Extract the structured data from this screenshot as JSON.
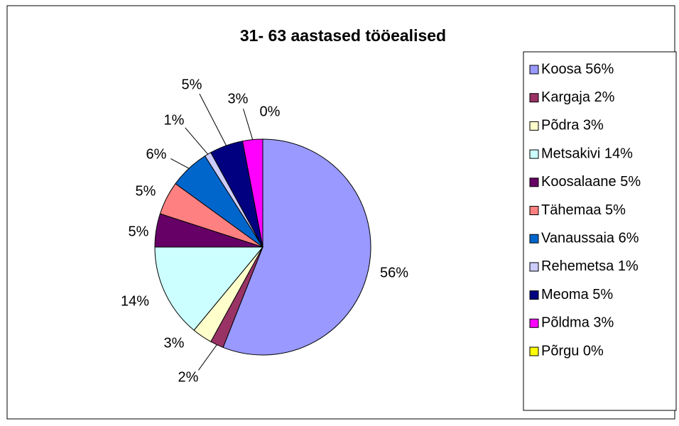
{
  "chart_data": {
    "type": "pie",
    "title": "31- 63 aastased tööealised",
    "categories": [
      "Koosa 56%",
      "Kargaja 2%",
      "Põdra 3%",
      "Metsakivi 14%",
      "Koosalaane 5%",
      "Tähemaa 5%",
      "Vanaussaia 6%",
      "Rehemetsa 1%",
      "Meoma 5%",
      "Põldma 3%",
      "Põrgu 0%"
    ],
    "values": [
      56,
      2,
      3,
      14,
      5,
      5,
      6,
      1,
      5,
      3,
      0
    ],
    "value_labels": [
      "56%",
      "2%",
      "3%",
      "14%",
      "5%",
      "5%",
      "6%",
      "1%",
      "5%",
      "3%",
      "0%"
    ],
    "colors": [
      "#9999ff",
      "#993366",
      "#ffffcc",
      "#ccffff",
      "#660066",
      "#ff8080",
      "#0066cc",
      "#ccccff",
      "#000080",
      "#ff00ff",
      "#ffff00"
    ],
    "legend": "right"
  }
}
